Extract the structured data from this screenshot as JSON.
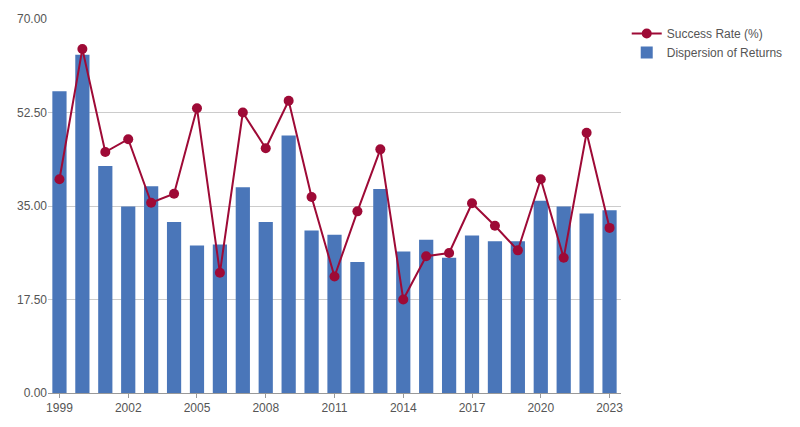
{
  "chart_data": {
    "type": "bar",
    "x": [
      1999,
      2000,
      2001,
      2002,
      2003,
      2004,
      2005,
      2006,
      2007,
      2008,
      2009,
      2010,
      2011,
      2012,
      2013,
      2014,
      2015,
      2016,
      2017,
      2018,
      2019,
      2020,
      2021,
      2022,
      2023
    ],
    "xlim": [
      1998.5,
      2023.5
    ],
    "xticks": [
      1999,
      2002,
      2005,
      2008,
      2011,
      2014,
      2017,
      2020,
      2023
    ],
    "ylim": [
      0,
      70
    ],
    "yticks": [
      {
        "value": 0,
        "label": "0.00"
      },
      {
        "value": 17.5,
        "label": "17.50"
      },
      {
        "value": 35,
        "label": "35.00"
      },
      {
        "value": 52.5,
        "label": "52.50"
      },
      {
        "value": 70,
        "label": "70.00"
      }
    ],
    "grid": true,
    "legend": "right",
    "series": [
      {
        "name": "Dispersion of Returns",
        "type": "bar",
        "color": "#4a76b9",
        "values": [
          56.5,
          63.3,
          42.5,
          34.9,
          38.7,
          32.0,
          27.6,
          27.8,
          38.5,
          32.0,
          48.2,
          30.4,
          29.6,
          24.5,
          38.2,
          26.5,
          28.7,
          25.3,
          29.5,
          28.4,
          28.4,
          36.0,
          34.9,
          33.6,
          34.2
        ]
      },
      {
        "name": "Success Rate (%)",
        "type": "line",
        "color": "#9e0a36",
        "marker": "circle",
        "values": [
          40.0,
          64.4,
          45.1,
          47.5,
          35.6,
          37.3,
          53.3,
          22.5,
          52.5,
          45.8,
          54.7,
          36.7,
          21.8,
          34.0,
          45.6,
          17.5,
          25.6,
          26.2,
          35.5,
          31.3,
          26.7,
          40.0,
          25.3,
          48.7,
          30.9
        ]
      }
    ]
  }
}
